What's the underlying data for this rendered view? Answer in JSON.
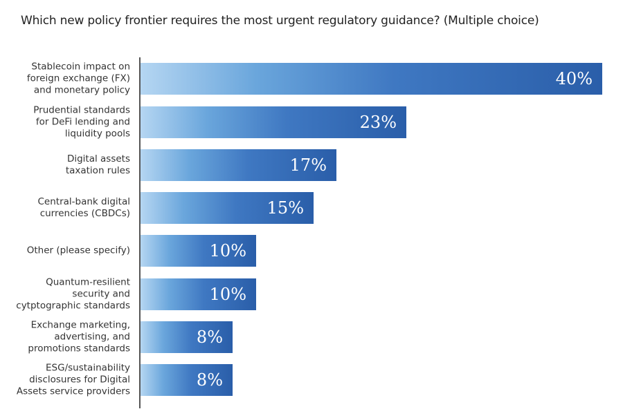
{
  "chart_data": {
    "type": "bar",
    "orientation": "horizontal",
    "title": "Which new policy frontier requires the most urgent regulatory guidance? (Multiple choice)",
    "xlabel": "",
    "ylabel": "",
    "grid": false,
    "legend": null,
    "categories": [
      "Stablecoin impact on foreign exchange (FX) and monetary policy",
      "Prudential standards for DeFi lending and liquidity pools",
      "Digital assets taxation rules",
      "Central-bank digital currencies (CBDCs)",
      "Other (please specify)",
      "Quantum-resilient security and cytptographic standards",
      "Exchange marketing, advertising, and promotions standards",
      "ESG/sustainability disclosures for Digital Assets service providers"
    ],
    "values": [
      40,
      23,
      17,
      15,
      10,
      10,
      8,
      8
    ],
    "value_labels": [
      "40%",
      "23%",
      "17%",
      "15%",
      "10%",
      "10%",
      "8%",
      "8%"
    ],
    "colors": {
      "gradient_start": "#b5d6f2",
      "gradient_end": "#2a5ea9",
      "axis": "#555555"
    }
  },
  "rows": [
    {
      "label_lines": [
        "Stablecoin impact on",
        "foreign exchange (FX)",
        "and monetary policy"
      ],
      "value": "40%"
    },
    {
      "label_lines": [
        "Prudential standards",
        "for DeFi lending and",
        "liquidity pools"
      ],
      "value": "23%"
    },
    {
      "label_lines": [
        "Digital assets",
        "taxation rules"
      ],
      "value": "17%"
    },
    {
      "label_lines": [
        "Central-bank digital",
        "currencies (CBDCs)"
      ],
      "value": "15%"
    },
    {
      "label_lines": [
        "Other (please specify)"
      ],
      "value": "10%"
    },
    {
      "label_lines": [
        "Quantum-resilient",
        "security and",
        "cytptographic standards"
      ],
      "value": "10%"
    },
    {
      "label_lines": [
        "Exchange marketing,",
        "advertising, and",
        "promotions standards"
      ],
      "value": "8%"
    },
    {
      "label_lines": [
        "ESG/sustainability",
        "disclosures for Digital",
        "Assets service providers"
      ],
      "value": "8%"
    }
  ]
}
